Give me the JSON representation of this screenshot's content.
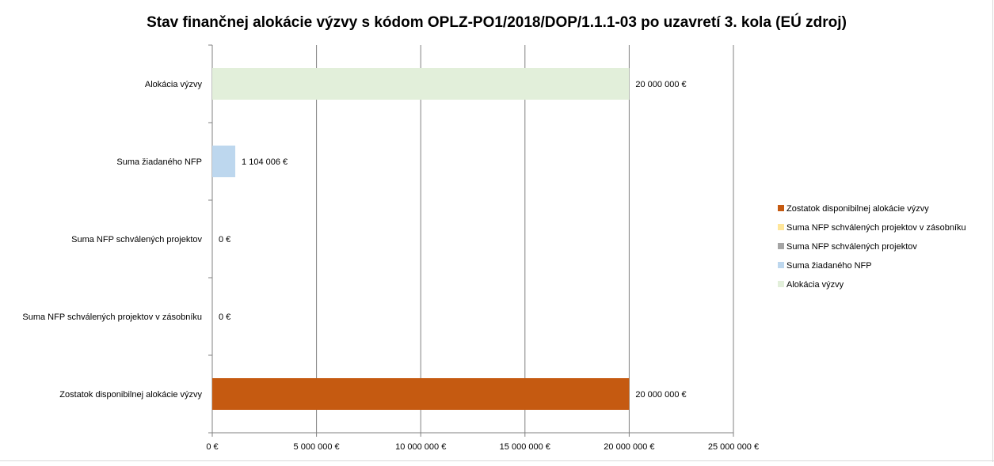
{
  "chart_data": {
    "type": "bar",
    "orientation": "horizontal",
    "title": "Stav finančnej alokácie výzvy s kódom OPLZ-PO1/2018/DOP/1.1.1-03 po uzavretí 3. kola (EÚ zdroj)",
    "categories": [
      "Alokácia výzvy",
      "Suma žiadaného NFP",
      "Suma NFP schválených projektov",
      "Suma NFP schválených projektov v zásobníku",
      "Zostatok disponibilnej alokácie výzvy"
    ],
    "values": [
      20000000,
      1104006,
      0,
      0,
      20000000
    ],
    "data_labels": [
      "20 000 000 €",
      "1 104 006 €",
      "0 €",
      "0 €",
      "20 000 000 €"
    ],
    "colors": [
      "#e2efda",
      "#bdd7ee",
      "#a5a5a5",
      "#ffe699",
      "#c55a11"
    ],
    "xlim": [
      0,
      25000000
    ],
    "x_ticks": [
      0,
      5000000,
      10000000,
      15000000,
      20000000,
      25000000
    ],
    "x_tick_labels": [
      "0 €",
      "5 000 000 €",
      "10 000 000 €",
      "15 000 000 €",
      "20 000 000 €",
      "25 000 000 €"
    ],
    "grid": true,
    "legend_position": "right",
    "legend": [
      {
        "name": "Zostatok disponibilnej alokácie výzvy",
        "color": "#c55a11"
      },
      {
        "name": "Suma NFP schválených projektov v zásobníku",
        "color": "#ffe699"
      },
      {
        "name": "Suma NFP schválených projektov",
        "color": "#a5a5a5"
      },
      {
        "name": "Suma žiadaného NFP",
        "color": "#bdd7ee"
      },
      {
        "name": "Alokácia výzvy",
        "color": "#e2efda"
      }
    ]
  }
}
